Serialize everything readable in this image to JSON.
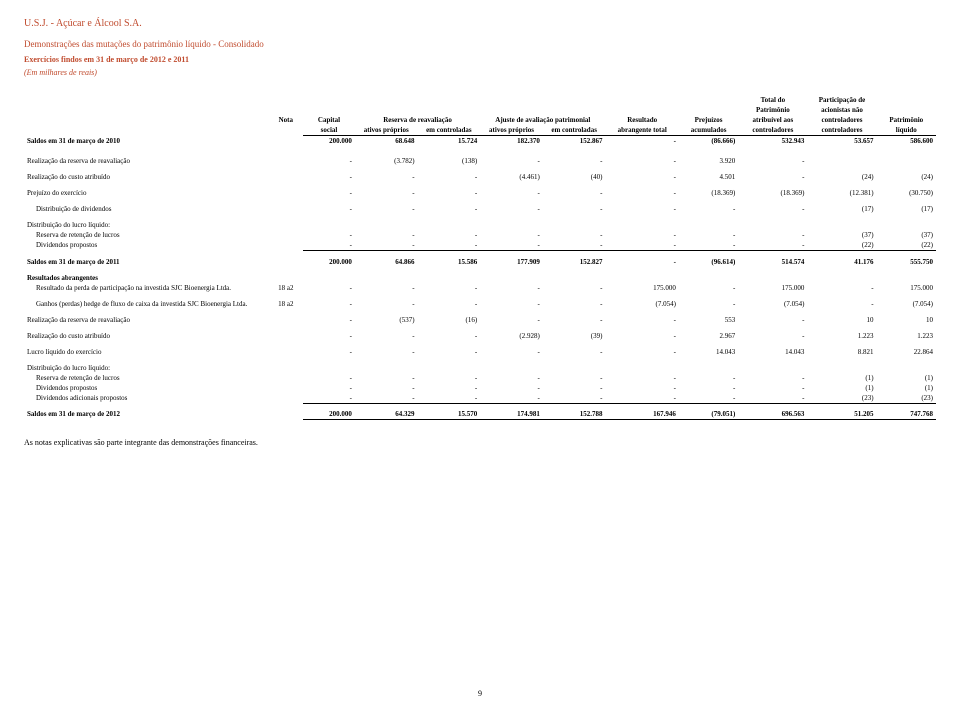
{
  "company": "U.S.J. - Açúcar e Álcool S.A.",
  "statement_title": "Demonstrações das mutações do patrimônio líquido - Consolidado",
  "period_line": "Exercícios findos em 31 de março de 2012 e 2011",
  "unit_line": "(Em milhares de reais)",
  "footnote": "As notas explicativas são parte integrante das demonstrações financeiras.",
  "page_number": "9",
  "head": {
    "nota": "Nota",
    "capital": "Capital",
    "social": "social",
    "reserva": "Reserva de reavaliação",
    "ajuste": "Ajuste de avaliação patrimonial",
    "ativos": "ativos próprios",
    "emctrl": "em controladas",
    "resultado": "Resultado",
    "abrangente": "abrangente total",
    "prejuizos": "Prejuízos",
    "acumulados": "acumulados",
    "totaldo": "Total do",
    "patrimonio": "Patrimônio",
    "atribuivel": "atribuível aos",
    "controladores": "controladores",
    "participacao": "Participação de",
    "acionistas": "acionistas não",
    "patliq1": "Patrimônio",
    "patliq2": "líquido"
  },
  "rows": {
    "s2010": {
      "label": "Saldos em 31 de março de 2010",
      "c": [
        "",
        "200.000",
        "68.648",
        "15.724",
        "182.370",
        "152.867",
        "-",
        "(86.666)",
        "532.943",
        "53.657",
        "586.600"
      ]
    },
    "rrr": {
      "label": "Realização da reserva de reavaliação",
      "c": [
        "",
        "-",
        "(3.782)",
        "(138)",
        "-",
        "-",
        "-",
        "3.920",
        "-",
        "",
        ""
      ]
    },
    "rca": {
      "label": "Realização do custo atribuído",
      "c": [
        "",
        "-",
        "-",
        "-",
        "(4.461)",
        "(40)",
        "-",
        "4.501",
        "-",
        "(24)",
        "(24)"
      ]
    },
    "pex": {
      "label": "Prejuízo do exercício",
      "c": [
        "",
        "-",
        "-",
        "-",
        "-",
        "-",
        "-",
        "(18.369)",
        "(18.369)",
        "(12.381)",
        "(30.750)"
      ]
    },
    "ddiv": {
      "label": "Distribuição de dividendos",
      "c": [
        "",
        "-",
        "-",
        "-",
        "-",
        "-",
        "-",
        "-",
        "-",
        "(17)",
        "(17)"
      ]
    },
    "dll_head": {
      "label": "Distribuição do lucro líquido:"
    },
    "drl": {
      "label": "Reserva de retenção de lucros",
      "c": [
        "",
        "-",
        "-",
        "-",
        "-",
        "-",
        "-",
        "-",
        "-",
        "(37)",
        "(37)"
      ]
    },
    "dp": {
      "label": "Dividendos propostos",
      "c": [
        "",
        "-",
        "-",
        "-",
        "-",
        "-",
        "-",
        "-",
        "-",
        "(22)",
        "(22)"
      ]
    },
    "s2011": {
      "label": "Saldos em 31 de março de 2011",
      "c": [
        "",
        "200.000",
        "64.866",
        "15.586",
        "177.909",
        "152.827",
        "-",
        "(96.614)",
        "514.574",
        "41.176",
        "555.750"
      ]
    },
    "ra_head": {
      "label": "Resultados abrangentes"
    },
    "ra1": {
      "label": "Resultado da perda de participação na investida SJC Bioenergia Ltda.",
      "c": [
        "18 a2",
        "-",
        "-",
        "-",
        "-",
        "-",
        "175.000",
        "-",
        "175.000",
        "-",
        "175.000"
      ]
    },
    "ra2": {
      "label": "Ganhos (perdas) hedge de fluxo de caixa da investida SJC Bioenergia Ltda.",
      "c": [
        "18 a2",
        "-",
        "-",
        "-",
        "-",
        "-",
        "(7.054)",
        "-",
        "(7.054)",
        "-",
        "(7.054)"
      ]
    },
    "rrr2": {
      "label": "Realização da reserva de reavaliação",
      "c": [
        "",
        "-",
        "(537)",
        "(16)",
        "-",
        "-",
        "-",
        "553",
        "-",
        "10",
        "10"
      ]
    },
    "rca2": {
      "label": "Realização do custo atribuído",
      "c": [
        "",
        "-",
        "-",
        "-",
        "(2.928)",
        "(39)",
        "-",
        "2.967",
        "-",
        "1.223",
        "1.223"
      ]
    },
    "lle": {
      "label": "Lucro líquido do exercício",
      "c": [
        "",
        "-",
        "-",
        "-",
        "-",
        "-",
        "-",
        "14.043",
        "14.043",
        "8.821",
        "22.864"
      ]
    },
    "dll2_head": {
      "label": "Distribuição do lucro líquido:"
    },
    "drl2": {
      "label": "Reserva de retenção de lucros",
      "c": [
        "",
        "-",
        "-",
        "-",
        "-",
        "-",
        "-",
        "-",
        "-",
        "(1)",
        "(1)"
      ]
    },
    "dp2": {
      "label": "Dividendos propostos",
      "c": [
        "",
        "-",
        "-",
        "-",
        "-",
        "-",
        "-",
        "-",
        "-",
        "(1)",
        "(1)"
      ]
    },
    "dap": {
      "label": "Dividendos adicionais propostos",
      "c": [
        "",
        "-",
        "-",
        "-",
        "-",
        "-",
        "-",
        "-",
        "-",
        "(23)",
        "(23)"
      ]
    },
    "s2012": {
      "label": "Saldos em 31 de março de 2012",
      "c": [
        "",
        "200.000",
        "64.329",
        "15.570",
        "174.981",
        "152.788",
        "167.946",
        "(79.051)",
        "696.563",
        "51.205",
        "747.768"
      ]
    }
  }
}
